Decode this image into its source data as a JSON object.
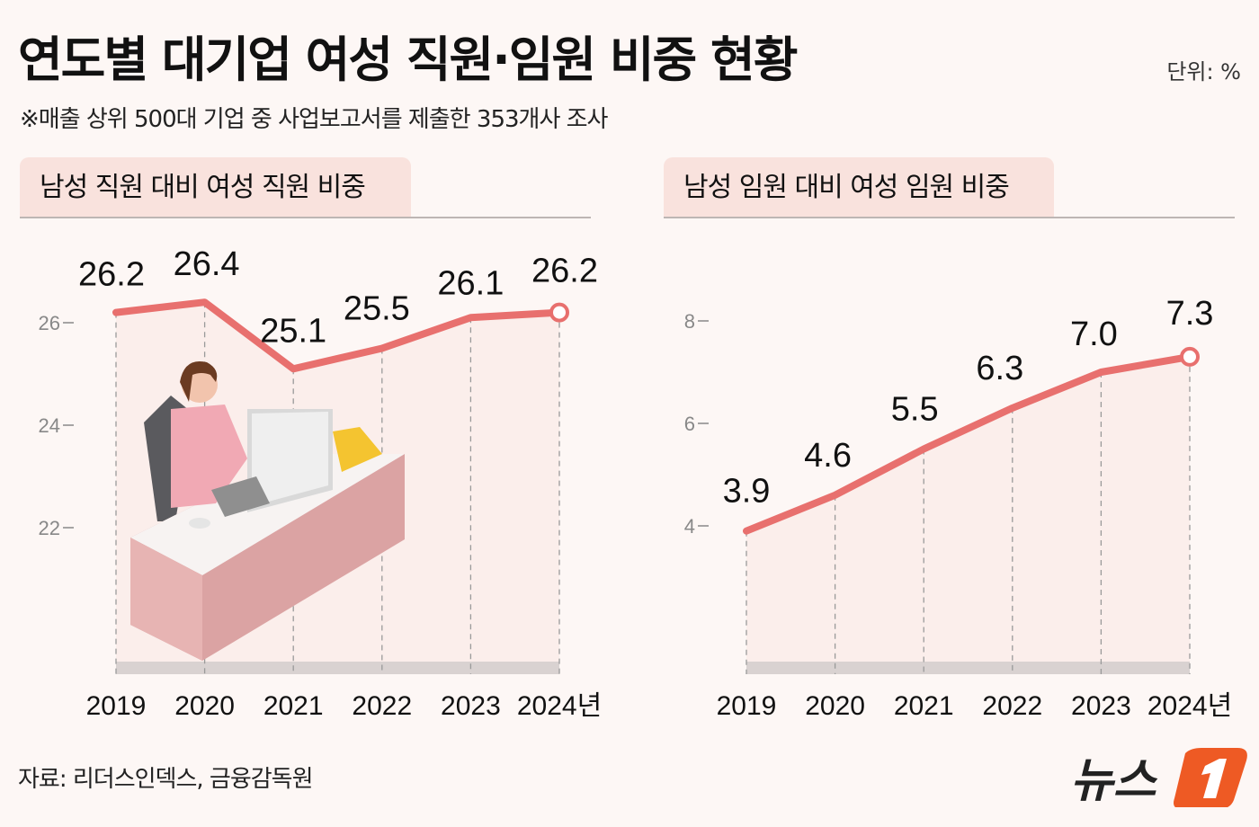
{
  "header": {
    "title": "연도별 대기업 여성 직원·임원 비중 현황",
    "unit": "단위: %",
    "subtitle": "※매출 상위 500대 기업 중 사업보고서를 제출한 353개사 조사"
  },
  "footer": {
    "source": "자료: 리더스인덱스, 금융감독원",
    "logo": "뉴스1"
  },
  "colors": {
    "line": "#e8706e",
    "tab": "#f9e2dd",
    "background": "#fdf7f5",
    "logo_accent": "#ee5a24"
  },
  "chart_data": [
    {
      "type": "line",
      "title": "남성 직원 대비 여성 직원 비중",
      "categories": [
        "2019",
        "2020",
        "2021",
        "2022",
        "2023",
        "2024년"
      ],
      "values": [
        26.2,
        26.4,
        25.1,
        25.5,
        26.1,
        26.2
      ],
      "yticks": [
        "22",
        "24",
        "26"
      ],
      "ylim": [
        19,
        27
      ],
      "grid": false,
      "data_labels": [
        "26.2",
        "26.4",
        "25.1",
        "25.5",
        "26.1",
        "26.2"
      ]
    },
    {
      "type": "line",
      "title": "남성 임원 대비 여성 임원 비중",
      "categories": [
        "2019",
        "2020",
        "2021",
        "2022",
        "2023",
        "2024년"
      ],
      "values": [
        3.9,
        4.6,
        5.5,
        6.3,
        7.0,
        7.3
      ],
      "yticks": [
        "4",
        "6",
        "8"
      ],
      "ylim": [
        1,
        9
      ],
      "grid": false,
      "data_labels": [
        "3.9",
        "4.6",
        "5.5",
        "6.3",
        "7.0",
        "7.3"
      ]
    }
  ]
}
